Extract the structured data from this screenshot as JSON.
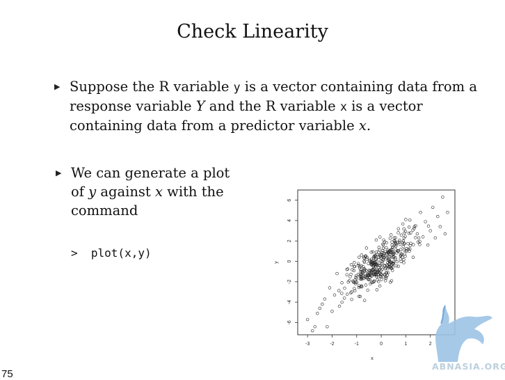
{
  "slide": {
    "title": "Check Linearity",
    "bullet1": {
      "t1": "Suppose the R variable ",
      "code_y": "y",
      "t2": " is a vector containing data from a response variable ",
      "var_Y": "Y",
      "t3": " and the R variable ",
      "code_x": "x",
      "t4": " is a vector containing data from a predictor variable ",
      "var_x": "x",
      "t5": "."
    },
    "bullet2": {
      "t1": "We can generate a plot of ",
      "var_y": "y",
      "t2": " against ",
      "var_x": "x",
      "t3": " with the command"
    },
    "command": ">  plot(x,y)",
    "page_number": "75",
    "watermark": "ABNASIA.ORG"
  },
  "chart_data": {
    "type": "scatter",
    "title": "",
    "xlabel": "x",
    "ylabel": "y",
    "xlim": [
      -3.4,
      3.0
    ],
    "ylim": [
      -7.2,
      7.0
    ],
    "x_ticks": [
      "-3",
      "-2",
      "-1",
      "0",
      "1",
      "2"
    ],
    "y_ticks": [
      "-6",
      "-4",
      "-2",
      "0",
      "2",
      "4",
      "6"
    ],
    "grid": false,
    "marker": "open-circle",
    "approx_points": [
      [
        -3,
        -5.7
      ],
      [
        -2.8,
        -6.8
      ],
      [
        -2.7,
        -6.4
      ],
      [
        -2.6,
        -5.1
      ],
      [
        -2.5,
        -4.6
      ],
      [
        -2.4,
        -4.2
      ],
      [
        -2.3,
        -3.7
      ],
      [
        -2.2,
        -6.4
      ],
      [
        -2.1,
        -2.6
      ],
      [
        -2.0,
        -4.9
      ],
      [
        -1.9,
        -3.3
      ],
      [
        -1.8,
        -1.2
      ],
      [
        -1.7,
        -4.4
      ],
      [
        -1.6,
        -2.1
      ],
      [
        -1.5,
        -3.6
      ],
      [
        -1.4,
        -0.8
      ],
      [
        -1.3,
        -1.9
      ],
      [
        -1.2,
        -3.0
      ],
      [
        -1.1,
        -0.5
      ],
      [
        -1.0,
        -1.7
      ],
      [
        -0.9,
        0.4
      ],
      [
        -0.8,
        -2.4
      ],
      [
        -0.7,
        -0.9
      ],
      [
        -0.6,
        1.3
      ],
      [
        -0.5,
        -1.4
      ],
      [
        -0.4,
        0.2
      ],
      [
        -0.3,
        -2.0
      ],
      [
        -0.2,
        0.9
      ],
      [
        -0.1,
        -0.6
      ],
      [
        0.0,
        0.3
      ],
      [
        0.1,
        2.1
      ],
      [
        0.2,
        -1.1
      ],
      [
        0.3,
        0.8
      ],
      [
        0.4,
        2.6
      ],
      [
        0.5,
        -0.2
      ],
      [
        0.6,
        1.5
      ],
      [
        0.7,
        3.2
      ],
      [
        0.8,
        0.6
      ],
      [
        0.9,
        2.0
      ],
      [
        1.0,
        4.1
      ],
      [
        1.1,
        1.2
      ],
      [
        1.2,
        2.8
      ],
      [
        1.3,
        0.4
      ],
      [
        1.4,
        3.5
      ],
      [
        1.5,
        1.9
      ],
      [
        1.6,
        4.8
      ],
      [
        1.7,
        2.4
      ],
      [
        1.8,
        3.9
      ],
      [
        1.9,
        1.6
      ],
      [
        2.0,
        3.0
      ],
      [
        2.1,
        5.3
      ],
      [
        2.2,
        2.3
      ],
      [
        2.3,
        4.4
      ],
      [
        2.4,
        3.4
      ],
      [
        2.5,
        6.3
      ],
      [
        2.6,
        2.7
      ],
      [
        2.7,
        4.8
      ]
    ]
  }
}
